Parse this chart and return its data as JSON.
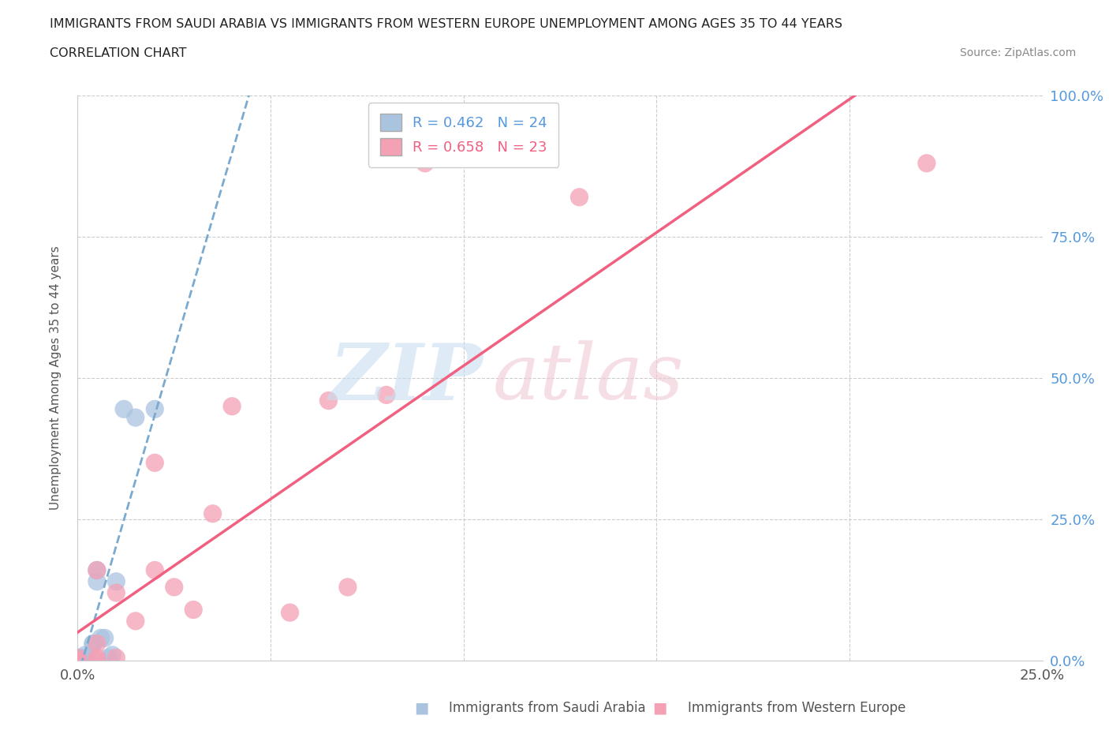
{
  "title_line1": "IMMIGRANTS FROM SAUDI ARABIA VS IMMIGRANTS FROM WESTERN EUROPE UNEMPLOYMENT AMONG AGES 35 TO 44 YEARS",
  "title_line2": "CORRELATION CHART",
  "source": "Source: ZipAtlas.com",
  "ylabel": "Unemployment Among Ages 35 to 44 years",
  "xlim": [
    0.0,
    0.25
  ],
  "ylim": [
    0.0,
    1.0
  ],
  "xticks": [
    0.0,
    0.05,
    0.1,
    0.15,
    0.2,
    0.25
  ],
  "yticks": [
    0.0,
    0.25,
    0.5,
    0.75,
    1.0
  ],
  "saudi_R": 0.462,
  "saudi_N": 24,
  "western_R": 0.658,
  "western_N": 23,
  "saudi_color": "#aac4e0",
  "western_color": "#f4a0b5",
  "saudi_line_color": "#7aaad0",
  "western_line_color": "#f06080",
  "saudi_x": [
    0.0,
    0.0,
    0.0,
    0.0,
    0.0,
    0.0,
    0.0,
    0.001,
    0.001,
    0.002,
    0.002,
    0.003,
    0.004,
    0.004,
    0.005,
    0.005,
    0.006,
    0.007,
    0.008,
    0.009,
    0.01,
    0.012,
    0.015,
    0.02
  ],
  "saudi_y": [
    0.0,
    0.0,
    0.0,
    0.0,
    0.0,
    0.005,
    0.005,
    0.0,
    0.005,
    0.005,
    0.01,
    0.005,
    0.03,
    0.03,
    0.14,
    0.16,
    0.04,
    0.04,
    0.005,
    0.01,
    0.14,
    0.445,
    0.43,
    0.445
  ],
  "western_x": [
    0.0,
    0.0,
    0.0,
    0.005,
    0.005,
    0.005,
    0.005,
    0.01,
    0.01,
    0.015,
    0.02,
    0.02,
    0.025,
    0.03,
    0.035,
    0.04,
    0.055,
    0.065,
    0.07,
    0.08,
    0.09,
    0.13,
    0.22
  ],
  "western_y": [
    0.0,
    0.0,
    0.005,
    0.0,
    0.005,
    0.03,
    0.16,
    0.005,
    0.12,
    0.07,
    0.16,
    0.35,
    0.13,
    0.09,
    0.26,
    0.45,
    0.085,
    0.46,
    0.13,
    0.47,
    0.88,
    0.82,
    0.88
  ]
}
